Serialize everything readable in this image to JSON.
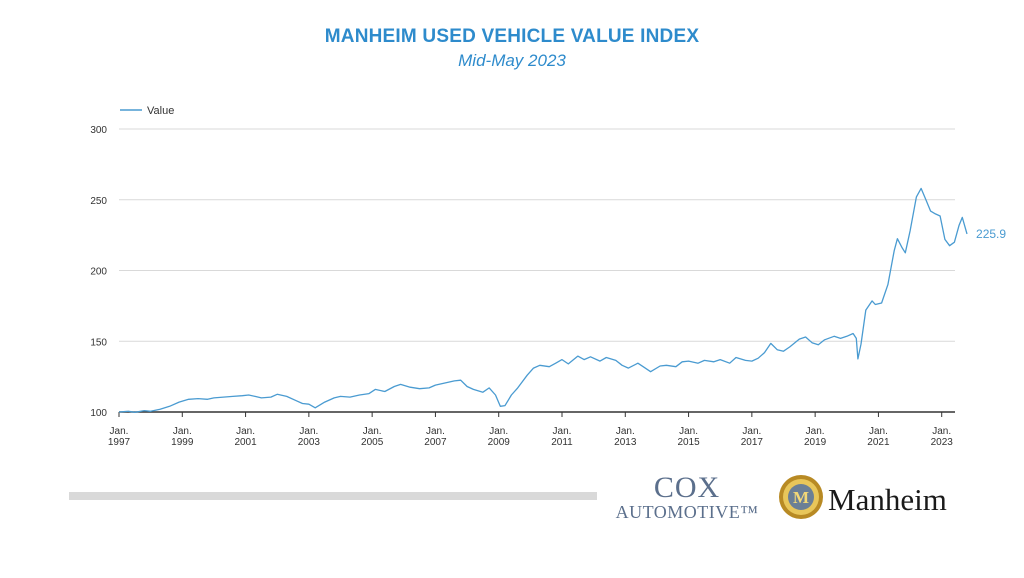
{
  "header": {
    "title": "MANHEIM USED VEHICLE VALUE INDEX",
    "subtitle": "Mid-May 2023"
  },
  "chart_data": {
    "type": "line",
    "title": "MANHEIM USED VEHICLE VALUE INDEX",
    "subtitle": "Mid-May 2023",
    "xlabel": "",
    "ylabel": "",
    "ylim": [
      100,
      300
    ],
    "yticks": [
      100,
      150,
      200,
      250,
      300
    ],
    "xlim": [
      1997.0,
      2023.42
    ],
    "xticks": [
      {
        "year": 1997,
        "label_line1": "Jan.",
        "label_line2": "1997"
      },
      {
        "year": 1999,
        "label_line1": "Jan.",
        "label_line2": "1999"
      },
      {
        "year": 2001,
        "label_line1": "Jan.",
        "label_line2": "2001"
      },
      {
        "year": 2003,
        "label_line1": "Jan.",
        "label_line2": "2003"
      },
      {
        "year": 2005,
        "label_line1": "Jan.",
        "label_line2": "2005"
      },
      {
        "year": 2007,
        "label_line1": "Jan.",
        "label_line2": "2007"
      },
      {
        "year": 2009,
        "label_line1": "Jan.",
        "label_line2": "2009"
      },
      {
        "year": 2011,
        "label_line1": "Jan.",
        "label_line2": "2011"
      },
      {
        "year": 2013,
        "label_line1": "Jan.",
        "label_line2": "2013"
      },
      {
        "year": 2015,
        "label_line1": "Jan.",
        "label_line2": "2015"
      },
      {
        "year": 2017,
        "label_line1": "Jan.",
        "label_line2": "2017"
      },
      {
        "year": 2019,
        "label_line1": "Jan.",
        "label_line2": "2019"
      },
      {
        "year": 2021,
        "label_line1": "Jan.",
        "label_line2": "2021"
      },
      {
        "year": 2023,
        "label_line1": "Jan.",
        "label_line2": "2023"
      }
    ],
    "grid": true,
    "legend": {
      "placement": "top-left",
      "entries": [
        "Value"
      ]
    },
    "end_label": "225.9",
    "series": [
      {
        "name": "Value",
        "color": "#4a9bd1",
        "points": [
          [
            1997.0,
            100.0
          ],
          [
            1997.3,
            100.5
          ],
          [
            1997.5,
            99.8
          ],
          [
            1997.8,
            101.0
          ],
          [
            1998.0,
            100.5
          ],
          [
            1998.3,
            102.0
          ],
          [
            1998.6,
            104.0
          ],
          [
            1998.9,
            107.0
          ],
          [
            1999.2,
            109.0
          ],
          [
            1999.5,
            109.5
          ],
          [
            1999.8,
            109.0
          ],
          [
            2000.0,
            110.0
          ],
          [
            2000.3,
            110.5
          ],
          [
            2000.6,
            111.0
          ],
          [
            2000.9,
            111.5
          ],
          [
            2001.1,
            112.0
          ],
          [
            2001.3,
            111.0
          ],
          [
            2001.5,
            110.0
          ],
          [
            2001.8,
            110.5
          ],
          [
            2002.0,
            112.5
          ],
          [
            2002.3,
            111.0
          ],
          [
            2002.6,
            108.0
          ],
          [
            2002.8,
            106.0
          ],
          [
            2003.0,
            105.5
          ],
          [
            2003.2,
            103.0
          ],
          [
            2003.5,
            107.0
          ],
          [
            2003.8,
            110.0
          ],
          [
            2004.0,
            111.0
          ],
          [
            2004.3,
            110.5
          ],
          [
            2004.6,
            112.0
          ],
          [
            2004.9,
            113.0
          ],
          [
            2005.1,
            116.0
          ],
          [
            2005.4,
            114.5
          ],
          [
            2005.7,
            118.0
          ],
          [
            2005.9,
            119.5
          ],
          [
            2006.2,
            117.5
          ],
          [
            2006.5,
            116.5
          ],
          [
            2006.8,
            117.0
          ],
          [
            2007.0,
            119.0
          ],
          [
            2007.3,
            120.5
          ],
          [
            2007.6,
            122.0
          ],
          [
            2007.8,
            122.5
          ],
          [
            2008.0,
            118.0
          ],
          [
            2008.2,
            116.0
          ],
          [
            2008.5,
            114.0
          ],
          [
            2008.7,
            117.0
          ],
          [
            2008.9,
            112.0
          ],
          [
            2009.05,
            104.0
          ],
          [
            2009.2,
            104.5
          ],
          [
            2009.4,
            112.0
          ],
          [
            2009.6,
            117.0
          ],
          [
            2009.9,
            126.0
          ],
          [
            2010.1,
            131.0
          ],
          [
            2010.3,
            133.0
          ],
          [
            2010.6,
            132.0
          ],
          [
            2010.8,
            134.5
          ],
          [
            2011.0,
            137.0
          ],
          [
            2011.2,
            134.0
          ],
          [
            2011.5,
            139.5
          ],
          [
            2011.7,
            137.0
          ],
          [
            2011.9,
            139.0
          ],
          [
            2012.2,
            136.0
          ],
          [
            2012.4,
            138.5
          ],
          [
            2012.7,
            136.5
          ],
          [
            2012.9,
            133.0
          ],
          [
            2013.1,
            131.0
          ],
          [
            2013.4,
            134.5
          ],
          [
            2013.6,
            131.5
          ],
          [
            2013.8,
            128.5
          ],
          [
            2014.1,
            132.5
          ],
          [
            2014.3,
            133.0
          ],
          [
            2014.6,
            132.0
          ],
          [
            2014.8,
            135.5
          ],
          [
            2015.0,
            136.0
          ],
          [
            2015.3,
            134.5
          ],
          [
            2015.5,
            136.5
          ],
          [
            2015.8,
            135.5
          ],
          [
            2016.0,
            137.0
          ],
          [
            2016.3,
            134.5
          ],
          [
            2016.5,
            138.5
          ],
          [
            2016.8,
            136.5
          ],
          [
            2017.0,
            136.0
          ],
          [
            2017.2,
            138.0
          ],
          [
            2017.4,
            142.0
          ],
          [
            2017.6,
            148.5
          ],
          [
            2017.8,
            144.0
          ],
          [
            2018.0,
            143.0
          ],
          [
            2018.2,
            146.0
          ],
          [
            2018.5,
            151.5
          ],
          [
            2018.7,
            153.0
          ],
          [
            2018.9,
            149.0
          ],
          [
            2019.1,
            147.5
          ],
          [
            2019.3,
            151.0
          ],
          [
            2019.6,
            153.5
          ],
          [
            2019.8,
            152.0
          ],
          [
            2020.0,
            153.5
          ],
          [
            2020.2,
            155.5
          ],
          [
            2020.3,
            152.0
          ],
          [
            2020.35,
            137.5
          ],
          [
            2020.45,
            148.0
          ],
          [
            2020.6,
            172.0
          ],
          [
            2020.8,
            178.5
          ],
          [
            2020.9,
            176.0
          ],
          [
            2021.1,
            177.0
          ],
          [
            2021.3,
            190.0
          ],
          [
            2021.5,
            214.0
          ],
          [
            2021.6,
            222.5
          ],
          [
            2021.75,
            216.0
          ],
          [
            2021.85,
            212.5
          ],
          [
            2022.0,
            228.0
          ],
          [
            2022.2,
            252.0
          ],
          [
            2022.35,
            258.0
          ],
          [
            2022.5,
            250.0
          ],
          [
            2022.65,
            242.0
          ],
          [
            2022.8,
            240.0
          ],
          [
            2022.95,
            238.5
          ],
          [
            2023.1,
            222.0
          ],
          [
            2023.25,
            217.5
          ],
          [
            2023.4,
            220.0
          ],
          [
            2023.55,
            232.0
          ],
          [
            2023.65,
            237.5
          ],
          [
            2023.8,
            225.9
          ]
        ]
      }
    ]
  },
  "footer": {
    "cox_line1": "COX",
    "cox_line2": "AUTOMOTIVE™",
    "manheim_brand": "Manheim",
    "manheim_logo_letter": "M"
  },
  "colors": {
    "accent": "#2e8bcc",
    "series": "#4a9bd1",
    "gold": "#c9a43a"
  }
}
